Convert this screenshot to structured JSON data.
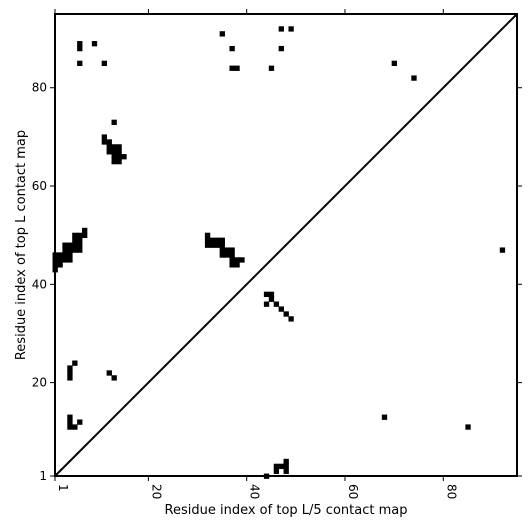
{
  "chart_data": {
    "type": "heatmap",
    "title": "",
    "xlabel": "Residue index of top L/5 contact map",
    "ylabel": "Residue index of top L contact map",
    "xlim": [
      1,
      95
    ],
    "ylim": [
      1,
      95
    ],
    "x_ticks": [
      1,
      20,
      40,
      60,
      80
    ],
    "y_ticks": [
      1,
      20,
      40,
      60,
      80
    ],
    "diagonal": true,
    "grid": false,
    "contacts_upper": [
      [
        1,
        43
      ],
      [
        1,
        44
      ],
      [
        1,
        45
      ],
      [
        1,
        46
      ],
      [
        2,
        44
      ],
      [
        2,
        45
      ],
      [
        2,
        46
      ],
      [
        3,
        45
      ],
      [
        3,
        46
      ],
      [
        3,
        47
      ],
      [
        3,
        48
      ],
      [
        4,
        45
      ],
      [
        4,
        46
      ],
      [
        4,
        47
      ],
      [
        4,
        48
      ],
      [
        5,
        47
      ],
      [
        5,
        48
      ],
      [
        5,
        49
      ],
      [
        5,
        50
      ],
      [
        6,
        47
      ],
      [
        6,
        48
      ],
      [
        6,
        49
      ],
      [
        6,
        50
      ],
      [
        7,
        50
      ],
      [
        7,
        51
      ],
      [
        6,
        88
      ],
      [
        6,
        89
      ],
      [
        6,
        85
      ],
      [
        9,
        89
      ],
      [
        11,
        85
      ],
      [
        11,
        69
      ],
      [
        11,
        70
      ],
      [
        12,
        67
      ],
      [
        12,
        68
      ],
      [
        12,
        69
      ],
      [
        13,
        65
      ],
      [
        13,
        66
      ],
      [
        13,
        67
      ],
      [
        13,
        68
      ],
      [
        14,
        65
      ],
      [
        14,
        66
      ],
      [
        14,
        67
      ],
      [
        14,
        68
      ],
      [
        15,
        66
      ],
      [
        13,
        73
      ],
      [
        32,
        48
      ],
      [
        32,
        49
      ],
      [
        32,
        50
      ],
      [
        33,
        48
      ],
      [
        33,
        49
      ],
      [
        34,
        48
      ],
      [
        34,
        49
      ],
      [
        35,
        46
      ],
      [
        35,
        47
      ],
      [
        35,
        48
      ],
      [
        35,
        49
      ],
      [
        36,
        46
      ],
      [
        36,
        47
      ],
      [
        37,
        44
      ],
      [
        37,
        45
      ],
      [
        37,
        46
      ],
      [
        37,
        47
      ],
      [
        38,
        44
      ],
      [
        38,
        45
      ],
      [
        39,
        45
      ],
      [
        35,
        91
      ],
      [
        37,
        88
      ],
      [
        37,
        84
      ],
      [
        38,
        84
      ],
      [
        45,
        84
      ],
      [
        47,
        92
      ],
      [
        49,
        92
      ],
      [
        47,
        88
      ],
      [
        70,
        85
      ],
      [
        74,
        82
      ],
      [
        92,
        47
      ],
      [
        44,
        38
      ],
      [
        45,
        38
      ],
      [
        44,
        36
      ],
      [
        46,
        36
      ],
      [
        47,
        35
      ],
      [
        48,
        34
      ],
      [
        49,
        33
      ],
      [
        45,
        37
      ]
    ],
    "contacts_lower": [
      [
        4,
        21
      ],
      [
        4,
        22
      ],
      [
        4,
        23
      ],
      [
        5,
        24
      ],
      [
        12,
        22
      ],
      [
        13,
        21
      ],
      [
        4,
        11
      ],
      [
        4,
        12
      ],
      [
        4,
        13
      ],
      [
        5,
        11
      ],
      [
        6,
        12
      ],
      [
        44,
        1
      ],
      [
        46,
        2
      ],
      [
        46,
        3
      ],
      [
        47,
        3
      ],
      [
        48,
        2
      ],
      [
        48,
        3
      ],
      [
        48,
        4
      ],
      [
        68,
        13
      ],
      [
        85,
        11
      ]
    ]
  }
}
